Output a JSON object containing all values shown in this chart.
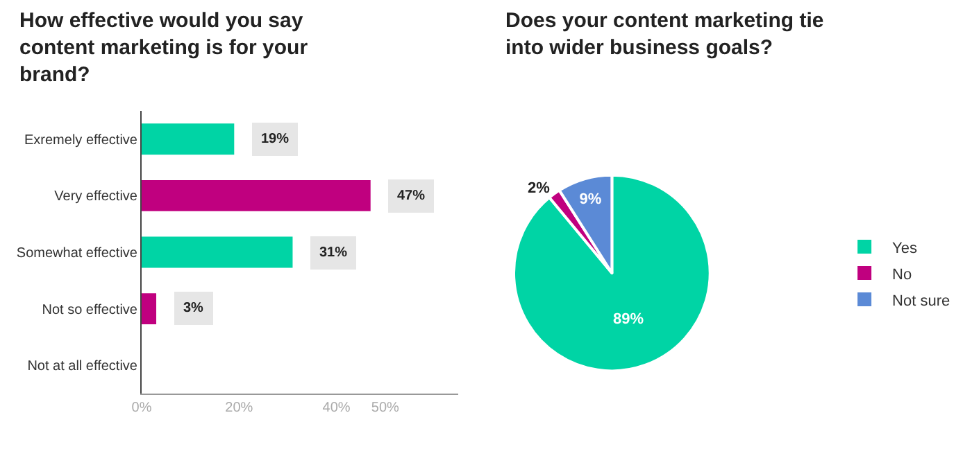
{
  "chart_data": [
    {
      "type": "bar",
      "title": "How effective would you say content marketing is for your brand?",
      "orientation": "horizontal",
      "categories": [
        "Exremely effective",
        "Very effective",
        "Somewhat effective",
        "Not so effective",
        "Not at all effective"
      ],
      "values": [
        19,
        47,
        31,
        3,
        0
      ],
      "value_labels": [
        "19%",
        "47%",
        "31%",
        "3%",
        null
      ],
      "colors": [
        "#00d4a5",
        "#c0007f",
        "#00d4a5",
        "#c0007f",
        "#00d4a5"
      ],
      "xlim": [
        0,
        65
      ],
      "xticks": [
        {
          "value": 0,
          "label": "0%"
        },
        {
          "value": 20,
          "label": "20%"
        },
        {
          "value": 40,
          "label": "40%"
        },
        {
          "value": 50,
          "label": "50%"
        }
      ],
      "grid": false,
      "legend": false
    },
    {
      "type": "pie",
      "title": "Does your content marketing tie into wider business goals?",
      "categories": [
        "Yes",
        "No",
        "Not sure"
      ],
      "values": [
        89,
        2,
        9
      ],
      "value_labels": [
        "89%",
        "2%",
        "9%"
      ],
      "colors": [
        "#00d4a5",
        "#c0007f",
        "#5b8ad6"
      ],
      "legend": "right"
    }
  ]
}
